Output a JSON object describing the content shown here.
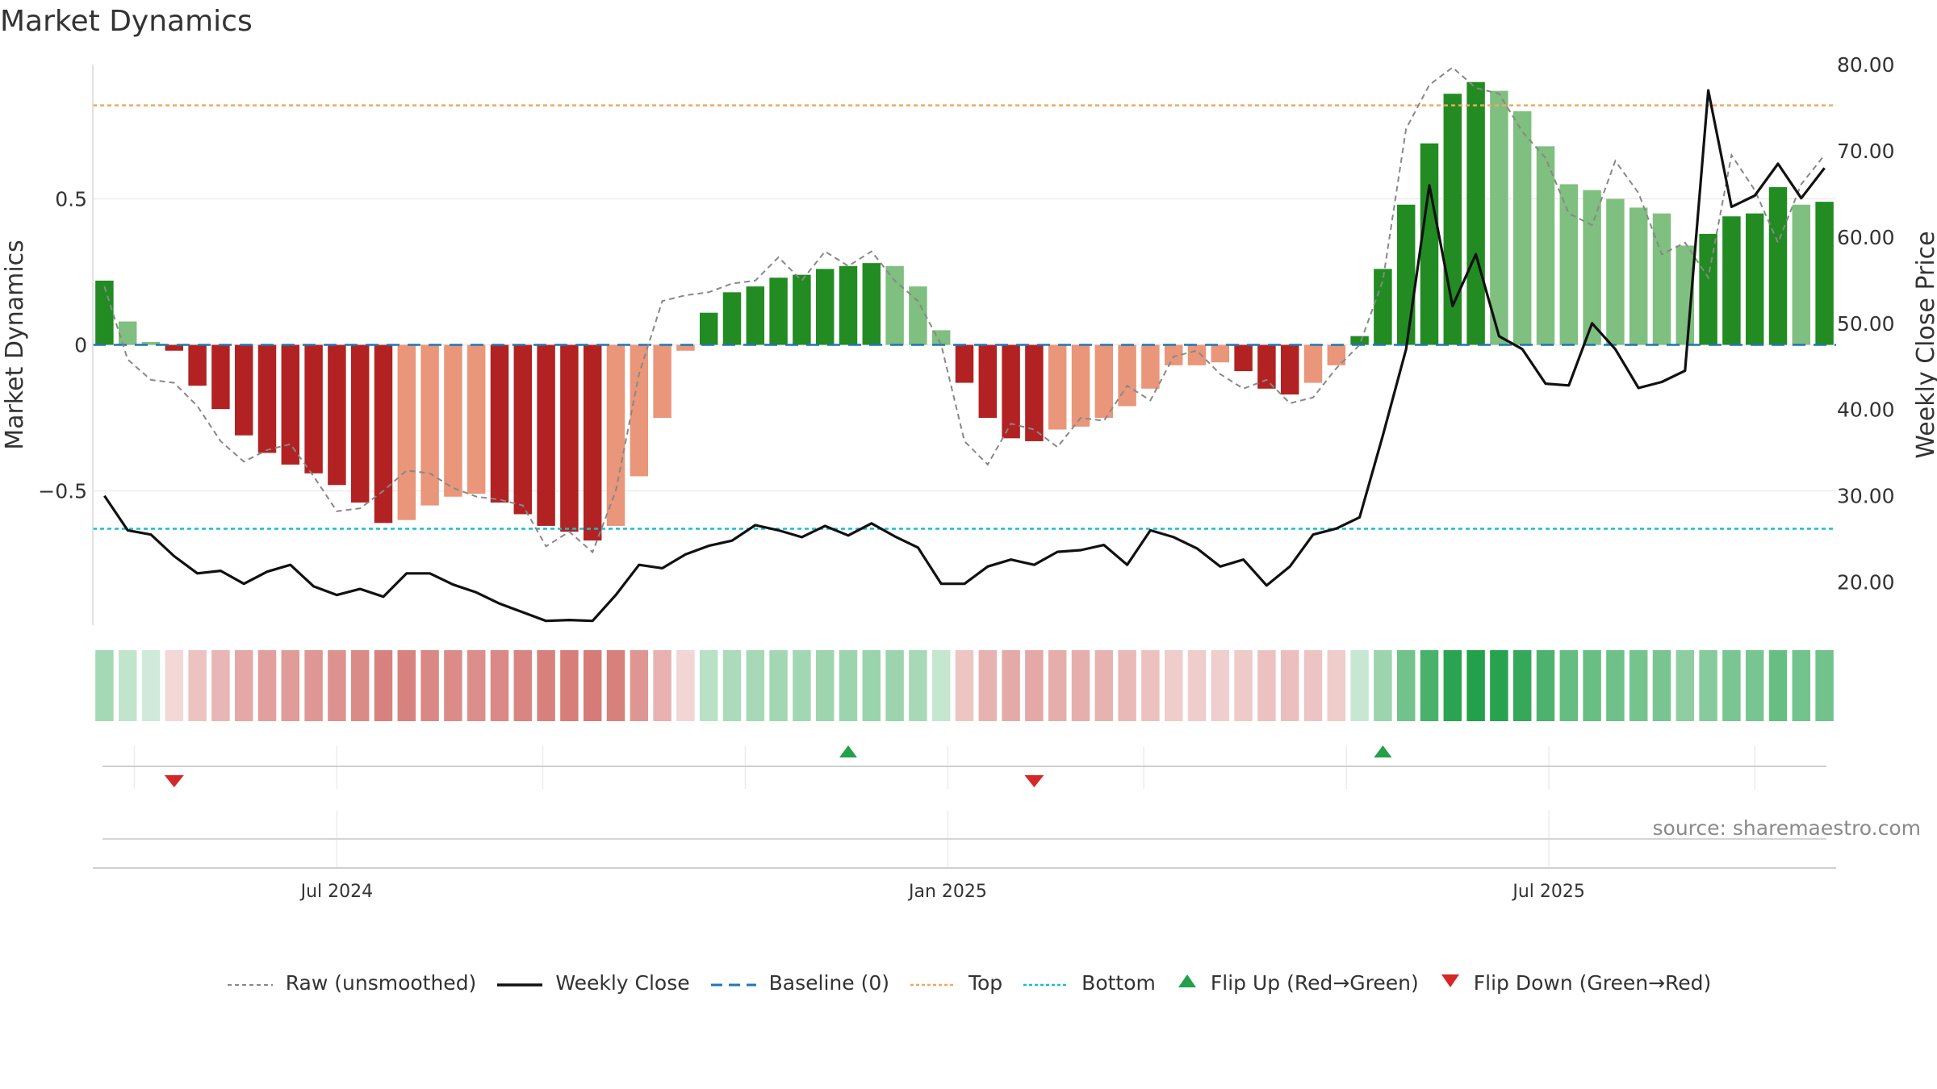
{
  "chart_data": {
    "type": "bar",
    "title": "Market Dynamics",
    "ylabel_left": "Market Dynamics",
    "ylabel_right": "Weekly Close Price",
    "source": "source: sharemaestro.com",
    "x_tick_labels": [
      "Jul 2024",
      "Jan 2025",
      "Jul 2025"
    ],
    "y_left_ticks": [
      "0.5",
      "0",
      "−0.5"
    ],
    "y_right_ticks": [
      "80.00",
      "70.00",
      "60.00",
      "50.00",
      "40.00",
      "30.00",
      "20.00"
    ],
    "y_left_lim": [
      -0.96,
      0.96
    ],
    "y_right_lim": [
      15,
      80
    ],
    "top_level": 0.82,
    "bottom_level": -0.63,
    "baseline": 0,
    "grid": true,
    "legend_position": "bottom-center",
    "colors": {
      "strong_up": "#228b22",
      "weak_up": "#7fbf7f",
      "strong_down": "#b22222",
      "weak_down": "#e9967a",
      "close": "#111111",
      "raw": "#888888",
      "baseline": "#1f77b4",
      "top": "#f0a860",
      "bottom": "#17becf",
      "flip_up": "#22a04a",
      "flip_down": "#d62728"
    },
    "weeks": [
      "2024-04-22",
      "2024-04-29",
      "2024-05-06",
      "2024-05-13",
      "2024-05-20",
      "2024-05-27",
      "2024-06-03",
      "2024-06-10",
      "2024-06-17",
      "2024-06-24",
      "2024-07-01",
      "2024-07-08",
      "2024-07-15",
      "2024-07-22",
      "2024-07-29",
      "2024-08-05",
      "2024-08-12",
      "2024-08-19",
      "2024-08-26",
      "2024-09-02",
      "2024-09-09",
      "2024-09-16",
      "2024-09-23",
      "2024-09-30",
      "2024-10-07",
      "2024-10-14",
      "2024-10-21",
      "2024-10-28",
      "2024-11-04",
      "2024-11-11",
      "2024-11-18",
      "2024-11-25",
      "2024-12-02",
      "2024-12-09",
      "2024-12-16",
      "2024-12-23",
      "2024-12-30",
      "2025-01-06",
      "2025-01-13",
      "2025-01-20",
      "2025-01-27",
      "2025-02-03",
      "2025-02-10",
      "2025-02-17",
      "2025-02-24",
      "2025-03-03",
      "2025-03-10",
      "2025-03-17",
      "2025-03-24",
      "2025-03-31",
      "2025-04-07",
      "2025-04-14",
      "2025-04-21",
      "2025-04-28",
      "2025-05-05",
      "2025-05-12",
      "2025-05-19",
      "2025-05-26",
      "2025-06-02",
      "2025-06-09",
      "2025-06-16",
      "2025-06-23",
      "2025-06-30",
      "2025-07-07",
      "2025-07-14",
      "2025-07-21",
      "2025-07-28",
      "2025-08-04",
      "2025-08-11",
      "2025-08-18",
      "2025-08-25",
      "2025-09-01",
      "2025-09-08",
      "2025-09-15",
      "2025-09-22"
    ],
    "dynamics": [
      0.22,
      0.08,
      0.01,
      -0.02,
      -0.14,
      -0.22,
      -0.31,
      -0.37,
      -0.41,
      -0.44,
      -0.48,
      -0.54,
      -0.61,
      -0.6,
      -0.55,
      -0.52,
      -0.51,
      -0.54,
      -0.58,
      -0.62,
      -0.64,
      -0.67,
      -0.62,
      -0.45,
      -0.25,
      -0.02,
      0.11,
      0.18,
      0.2,
      0.23,
      0.24,
      0.26,
      0.27,
      0.28,
      0.27,
      0.2,
      0.05,
      -0.13,
      -0.25,
      -0.32,
      -0.33,
      -0.29,
      -0.28,
      -0.25,
      -0.21,
      -0.15,
      -0.07,
      -0.07,
      -0.06,
      -0.09,
      -0.15,
      -0.17,
      -0.13,
      -0.07,
      0.03,
      0.26,
      0.48,
      0.69,
      0.86,
      0.9,
      0.87,
      0.8,
      0.68,
      0.55,
      0.53,
      0.5,
      0.47,
      0.45,
      0.34,
      0.38,
      0.44,
      0.45,
      0.54,
      0.48,
      0.49
    ],
    "strength": [
      "strong",
      "weak",
      "weak",
      "strong",
      "strong",
      "strong",
      "strong",
      "strong",
      "strong",
      "strong",
      "strong",
      "strong",
      "strong",
      "weak",
      "weak",
      "weak",
      "weak",
      "strong",
      "strong",
      "strong",
      "strong",
      "strong",
      "weak",
      "weak",
      "weak",
      "weak",
      "strong",
      "strong",
      "strong",
      "strong",
      "strong",
      "strong",
      "strong",
      "strong",
      "weak",
      "weak",
      "weak",
      "strong",
      "strong",
      "strong",
      "strong",
      "weak",
      "weak",
      "weak",
      "weak",
      "weak",
      "weak",
      "weak",
      "weak",
      "strong",
      "strong",
      "strong",
      "weak",
      "weak",
      "strong",
      "strong",
      "strong",
      "strong",
      "strong",
      "strong",
      "weak",
      "weak",
      "weak",
      "weak",
      "weak",
      "weak",
      "weak",
      "weak",
      "weak",
      "strong",
      "strong",
      "strong",
      "strong",
      "weak",
      "strong"
    ],
    "raw": [
      0.2,
      -0.05,
      -0.12,
      -0.13,
      -0.21,
      -0.33,
      -0.4,
      -0.36,
      -0.34,
      -0.45,
      -0.57,
      -0.56,
      -0.5,
      -0.43,
      -0.44,
      -0.49,
      -0.52,
      -0.53,
      -0.55,
      -0.69,
      -0.64,
      -0.71,
      -0.5,
      -0.1,
      0.15,
      0.17,
      0.18,
      0.21,
      0.22,
      0.3,
      0.22,
      0.32,
      0.27,
      0.32,
      0.22,
      0.15,
      0.0,
      -0.33,
      -0.41,
      -0.27,
      -0.29,
      -0.35,
      -0.25,
      -0.26,
      -0.14,
      -0.19,
      -0.04,
      -0.02,
      -0.1,
      -0.15,
      -0.12,
      -0.2,
      -0.18,
      -0.08,
      0.0,
      0.22,
      0.74,
      0.89,
      0.95,
      0.88,
      0.86,
      0.73,
      0.64,
      0.45,
      0.41,
      0.63,
      0.52,
      0.31,
      0.35,
      0.23,
      0.65,
      0.53,
      0.35,
      0.55,
      0.65
    ],
    "close": [
      30.0,
      26.0,
      25.5,
      23.0,
      21.0,
      21.3,
      19.8,
      21.2,
      22.0,
      19.5,
      18.5,
      19.2,
      18.3,
      21.0,
      21.0,
      19.7,
      18.8,
      17.5,
      16.5,
      15.5,
      15.6,
      15.5,
      18.5,
      22.0,
      21.6,
      23.2,
      24.2,
      24.8,
      26.6,
      26.0,
      25.2,
      26.5,
      25.4,
      26.8,
      25.3,
      24.0,
      19.8,
      19.8,
      21.8,
      22.6,
      22.0,
      23.5,
      23.7,
      24.3,
      22.0,
      26.0,
      25.2,
      23.9,
      21.8,
      22.6,
      19.6,
      21.8,
      25.5,
      26.2,
      27.5,
      37.0,
      47.0,
      66.0,
      52.0,
      58.0,
      48.5,
      47.0,
      43.0,
      42.8,
      50.0,
      47.0,
      42.5,
      43.2,
      44.5,
      77.0,
      63.5,
      64.8,
      68.5,
      64.5,
      68.0
    ],
    "heat_strip": [
      0.26,
      0.1,
      0.02,
      -0.03,
      -0.18,
      -0.27,
      -0.37,
      -0.43,
      -0.46,
      -0.49,
      -0.53,
      -0.58,
      -0.64,
      -0.64,
      -0.6,
      -0.57,
      -0.56,
      -0.59,
      -0.62,
      -0.65,
      -0.67,
      -0.69,
      -0.65,
      -0.5,
      -0.3,
      -0.05,
      0.15,
      0.22,
      0.25,
      0.27,
      0.28,
      0.3,
      0.31,
      0.32,
      0.31,
      0.25,
      0.08,
      -0.16,
      -0.29,
      -0.36,
      -0.37,
      -0.33,
      -0.32,
      -0.29,
      -0.25,
      -0.19,
      -0.11,
      -0.11,
      -0.1,
      -0.13,
      -0.19,
      -0.21,
      -0.17,
      -0.11,
      0.06,
      0.31,
      0.55,
      0.78,
      0.95,
      1.0,
      0.97,
      0.89,
      0.76,
      0.62,
      0.6,
      0.57,
      0.53,
      0.51,
      0.39,
      0.43,
      0.5,
      0.51,
      0.61,
      0.54,
      0.55
    ],
    "flip_up_weeks": [
      "2024-12-02",
      "2025-05-12"
    ],
    "flip_down_weeks": [
      "2024-05-13",
      "2025-01-27"
    ],
    "legend": [
      {
        "label": "Raw (unsmoothed)",
        "symbol": "dashed-gray"
      },
      {
        "label": "Weekly Close",
        "symbol": "solid-black"
      },
      {
        "label": "Baseline (0)",
        "symbol": "dashed-blue"
      },
      {
        "label": "Top",
        "symbol": "dotted-orange"
      },
      {
        "label": "Bottom",
        "symbol": "dotted-cyan"
      },
      {
        "label": "Flip Up (Red→Green)",
        "symbol": "triangle-up-green"
      },
      {
        "label": "Flip Down (Green→Red)",
        "symbol": "triangle-down-red"
      }
    ]
  }
}
